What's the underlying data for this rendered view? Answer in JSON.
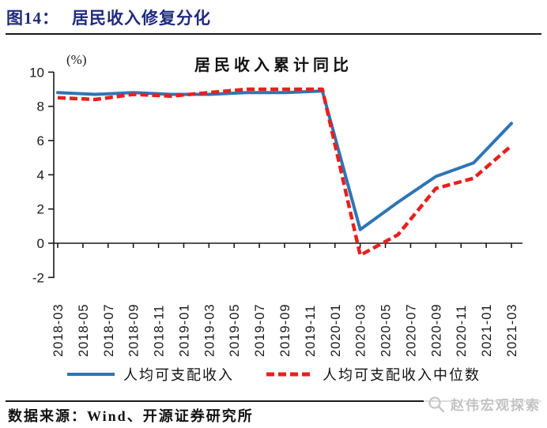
{
  "header": {
    "figure_label": "图14：",
    "title": "居民收入修复分化"
  },
  "chart_data": {
    "type": "line",
    "title": "居民收入累计同比",
    "unit_label": "(%)",
    "ylim": [
      -2,
      10
    ],
    "y_ticks": [
      10,
      8,
      6,
      4,
      2,
      0,
      -2
    ],
    "grid": false,
    "legend_position": "bottom",
    "x_axis_tick_labels": [
      "2018-03",
      "2018-05",
      "2018-07",
      "2018-09",
      "2018-11",
      "2019-01",
      "2019-03",
      "2019-05",
      "2019-07",
      "2019-09",
      "2019-11",
      "2020-01",
      "2020-03",
      "2020-05",
      "2020-07",
      "2020-09",
      "2020-11",
      "2021-01",
      "2021-03"
    ],
    "categories": [
      "2018-03",
      "2018-06",
      "2018-09",
      "2018-12",
      "2019-03",
      "2019-06",
      "2019-09",
      "2019-12",
      "2020-03",
      "2020-06",
      "2020-09",
      "2020-12",
      "2021-03"
    ],
    "series": [
      {
        "name": "人均可支配收入",
        "style": "solid",
        "color": "#2E75B6",
        "values": [
          8.8,
          8.7,
          8.8,
          8.7,
          8.7,
          8.8,
          8.8,
          8.9,
          0.8,
          2.4,
          3.9,
          4.7,
          7.0
        ]
      },
      {
        "name": "人均可支配收入中位数",
        "style": "dashed",
        "color": "#E8201E",
        "values": [
          8.5,
          8.4,
          8.7,
          8.6,
          8.8,
          9.0,
          9.0,
          9.0,
          -0.7,
          0.5,
          3.2,
          3.8,
          5.7
        ]
      }
    ]
  },
  "colors": {
    "axis": "#1a1a1a",
    "title_navy": "#1f2b7c",
    "rule": "#1a1a1a",
    "watermark_gray": "#c2c2c2"
  },
  "footer": {
    "source": "数据来源：Wind、开源证券研究所"
  },
  "watermark": {
    "text": "赵伟宏观探索",
    "icon": "magnifier-icon"
  }
}
